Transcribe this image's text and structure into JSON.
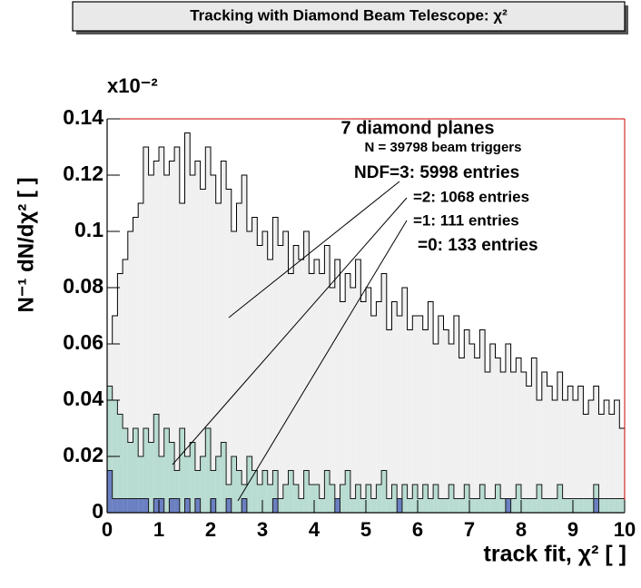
{
  "chart_data": {
    "type": "histogram",
    "title": "Tracking with Diamond Beam Telescope: χ²",
    "x_label": "track fit, χ² [ ]",
    "y_label": "N⁻¹ dN/dχ² [ ]",
    "y_multiplier": "x10⁻²",
    "annotations": [
      "7 diamond planes",
      "N = 39798 beam triggers",
      "=0: 133 entries"
    ],
    "bins": [
      0,
      0.1,
      0.2,
      0.3,
      0.4,
      0.5,
      0.6,
      0.7,
      0.8,
      0.9,
      1,
      1.1,
      1.2,
      1.3,
      1.4,
      1.5,
      1.6,
      1.7,
      1.8,
      1.9,
      2,
      2.1,
      2.2,
      2.3,
      2.4,
      2.5,
      2.6,
      2.7,
      2.8,
      2.9,
      3,
      3.1,
      3.2,
      3.3,
      3.4,
      3.5,
      3.6,
      3.7,
      3.8,
      3.9,
      4,
      4.1,
      4.2,
      4.3,
      4.4,
      4.5,
      4.6,
      4.7,
      4.8,
      4.9,
      5,
      5.1,
      5.2,
      5.3,
      5.4,
      5.5,
      5.6,
      5.7,
      5.8,
      5.9,
      6,
      6.1,
      6.2,
      6.3,
      6.4,
      6.5,
      6.6,
      6.7,
      6.8,
      6.9,
      7,
      7.1,
      7.2,
      7.3,
      7.4,
      7.5,
      7.6,
      7.7,
      7.8,
      7.9,
      8,
      8.1,
      8.2,
      8.3,
      8.4,
      8.5,
      8.6,
      8.7,
      8.8,
      8.9,
      9,
      9.1,
      9.2,
      9.3,
      9.4,
      9.5,
      9.6,
      9.7,
      9.8,
      9.9,
      10
    ],
    "series": [
      {
        "name": "NDF=3: 5998 entries",
        "color": "#f0f0f0",
        "values": [
          0.06,
          0.07,
          0.085,
          0.09,
          0.1,
          0.105,
          0.11,
          0.13,
          0.12,
          0.125,
          0.13,
          0.12,
          0.125,
          0.13,
          0.11,
          0.135,
          0.12,
          0.125,
          0.115,
          0.13,
          0.12,
          0.11,
          0.125,
          0.115,
          0.1,
          0.11,
          0.12,
          0.1,
          0.105,
          0.095,
          0.1,
          0.09,
          0.105,
          0.095,
          0.1,
          0.085,
          0.095,
          0.09,
          0.1,
          0.085,
          0.09,
          0.085,
          0.095,
          0.08,
          0.09,
          0.075,
          0.085,
          0.08,
          0.09,
          0.075,
          0.08,
          0.07,
          0.075,
          0.085,
          0.065,
          0.075,
          0.07,
          0.08,
          0.065,
          0.07,
          0.07,
          0.065,
          0.075,
          0.06,
          0.07,
          0.065,
          0.06,
          0.07,
          0.055,
          0.065,
          0.06,
          0.055,
          0.065,
          0.05,
          0.06,
          0.055,
          0.05,
          0.06,
          0.05,
          0.055,
          0.05,
          0.045,
          0.055,
          0.04,
          0.05,
          0.045,
          0.04,
          0.05,
          0.04,
          0.045,
          0.04,
          0.045,
          0.035,
          0.04,
          0.045,
          0.035,
          0.04,
          0.035,
          0.04,
          0.03
        ]
      },
      {
        "name": "=2: 1068 entries",
        "color": "#b9dcd2",
        "values": [
          0.045,
          0.04,
          0.035,
          0.03,
          0.025,
          0.03,
          0.02,
          0.03,
          0.025,
          0.035,
          0.02,
          0.03,
          0.025,
          0.015,
          0.03,
          0.02,
          0.025,
          0.015,
          0.02,
          0.03,
          0.015,
          0.02,
          0.025,
          0.01,
          0.02,
          0.015,
          0.01,
          0.02,
          0.015,
          0.01,
          0.015,
          0.01,
          0.015,
          0.005,
          0.01,
          0.015,
          0.01,
          0.005,
          0.015,
          0.01,
          0.01,
          0.005,
          0.015,
          0.01,
          0.005,
          0.01,
          0.015,
          0.005,
          0.01,
          0.005,
          0.01,
          0.005,
          0.01,
          0.015,
          0.005,
          0.01,
          0.005,
          0.01,
          0.005,
          0.01,
          0.005,
          0.01,
          0.005,
          0.01,
          0.005,
          0.005,
          0.01,
          0.005,
          0.005,
          0.01,
          0.005,
          0.005,
          0.01,
          0.005,
          0.005,
          0.01,
          0.005,
          0.005,
          0.005,
          0.01,
          0.005,
          0.005,
          0.005,
          0.01,
          0.005,
          0.005,
          0.005,
          0.01,
          0.005,
          0.005,
          0.005,
          0.005,
          0.005,
          0.005,
          0.01,
          0.005,
          0.005,
          0.005,
          0.005,
          0.005
        ]
      },
      {
        "name": "=1: 111 entries",
        "color": "#6b80c2",
        "values": [
          0.015,
          0.005,
          0.005,
          0.005,
          0.005,
          0.005,
          0.005,
          0.005,
          0,
          0.005,
          0.005,
          0,
          0.005,
          0.005,
          0,
          0.005,
          0,
          0.005,
          0,
          0,
          0.005,
          0,
          0,
          0.005,
          0,
          0,
          0.005,
          0,
          0,
          0,
          0,
          0,
          0.005,
          0,
          0,
          0,
          0,
          0,
          0,
          0,
          0,
          0,
          0,
          0,
          0.005,
          0,
          0,
          0,
          0,
          0,
          0,
          0,
          0,
          0,
          0,
          0,
          0.005,
          0,
          0,
          0,
          0,
          0,
          0,
          0,
          0,
          0,
          0,
          0,
          0,
          0,
          0,
          0,
          0,
          0,
          0,
          0,
          0,
          0.005,
          0,
          0,
          0,
          0,
          0,
          0,
          0,
          0,
          0,
          0,
          0,
          0,
          0,
          0,
          0,
          0,
          0.005,
          0,
          0,
          0,
          0,
          0
        ]
      }
    ],
    "xlim": [
      0,
      10
    ],
    "xticks": [
      0,
      1,
      2,
      3,
      4,
      5,
      6,
      7,
      8,
      9,
      10
    ],
    "ylim": [
      0,
      0.14
    ],
    "yticks": [
      0,
      0.02,
      0.04,
      0.06,
      0.08,
      0.1,
      0.12,
      0.14
    ]
  }
}
